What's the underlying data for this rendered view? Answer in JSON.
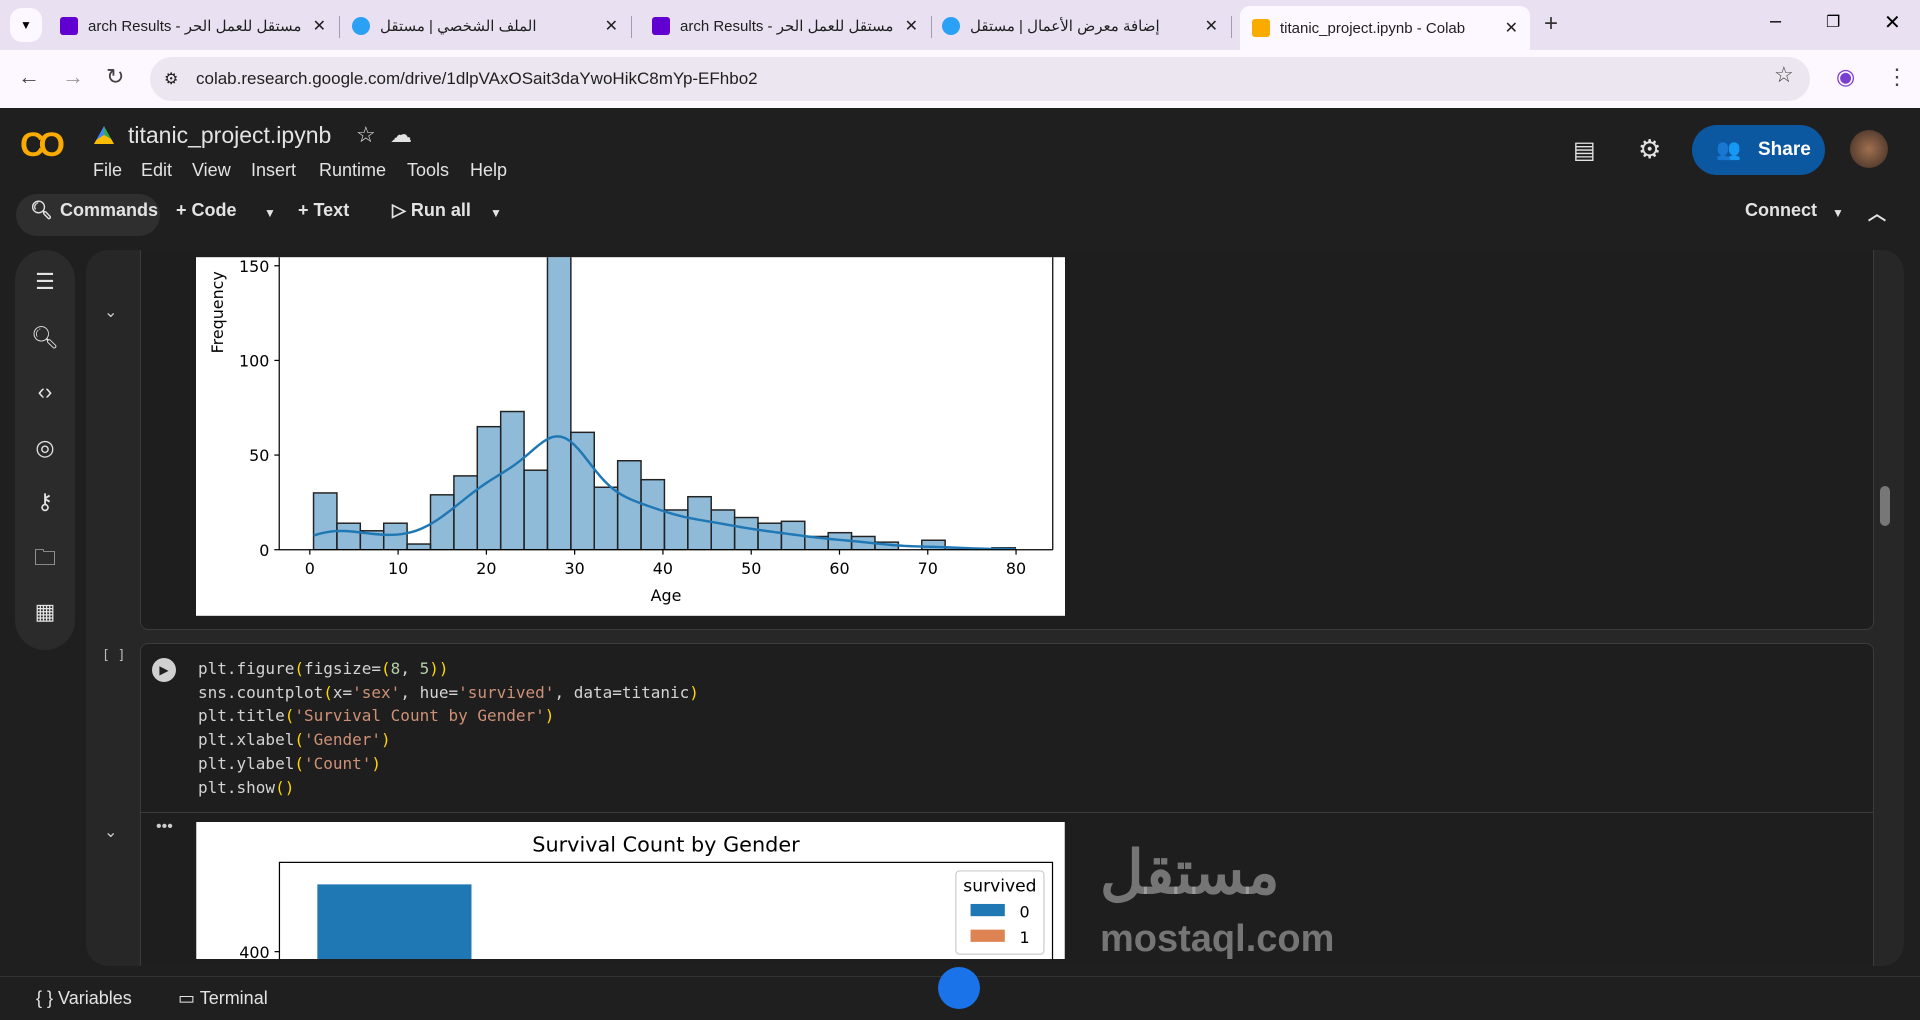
{
  "browser": {
    "tabs": [
      {
        "title": "مستقل للعمل الحر - arch Results",
        "icon": "yahoo-icon",
        "color": "#6001d2"
      },
      {
        "title": "الملف الشخصي | مستقل",
        "icon": "mostaql-icon",
        "color": "#2aa1f5"
      },
      {
        "title": "مستقل للعمل الحر - arch Results",
        "icon": "yahoo-icon",
        "color": "#6001d2"
      },
      {
        "title": "إضافة معرض الأعمال | مستقل",
        "icon": "mostaql-icon",
        "color": "#2aa1f5"
      },
      {
        "title": "titanic_project.ipynb - Colab",
        "icon": "colab-icon",
        "color": "#f9ab00"
      }
    ],
    "url": "colab.research.google.com/drive/1dlpVAxOSait3daYwoHikC8mYp-EFhbo2"
  },
  "colab": {
    "filename": "titanic_project.ipynb",
    "menu": [
      "File",
      "Edit",
      "View",
      "Insert",
      "Runtime",
      "Tools",
      "Help"
    ],
    "share": "Share",
    "toolbar": {
      "commands": "Commands",
      "code": "Code",
      "text": "Text",
      "run_all": "Run all",
      "connect": "Connect"
    },
    "bottom": {
      "variables": "Variables",
      "terminal": "Terminal"
    },
    "cell_exec": "[ ]",
    "code_lines": [
      [
        [
          "plt.figure",
          ""
        ],
        [
          "(",
          "p"
        ],
        [
          "figsize=",
          ""
        ],
        [
          "(",
          "p"
        ],
        [
          "8",
          "n"
        ],
        [
          ", ",
          ""
        ],
        [
          "5",
          "n"
        ],
        [
          ")",
          "p"
        ],
        [
          ")",
          "p"
        ]
      ],
      [
        [
          "sns.countplot",
          ""
        ],
        [
          "(",
          "p"
        ],
        [
          "x=",
          ""
        ],
        [
          "'sex'",
          "s"
        ],
        [
          ", hue=",
          ""
        ],
        [
          "'survived'",
          "s"
        ],
        [
          ", data=titanic",
          ""
        ],
        [
          ")",
          "p"
        ]
      ],
      [
        [
          "plt.title",
          ""
        ],
        [
          "(",
          "p"
        ],
        [
          "'Survival Count by Gender'",
          "s"
        ],
        [
          ")",
          "p"
        ]
      ],
      [
        [
          "plt.xlabel",
          ""
        ],
        [
          "(",
          "p"
        ],
        [
          "'Gender'",
          "s"
        ],
        [
          ")",
          "p"
        ]
      ],
      [
        [
          "plt.ylabel",
          ""
        ],
        [
          "(",
          "p"
        ],
        [
          "'Count'",
          "s"
        ],
        [
          ")",
          "p"
        ]
      ],
      [
        [
          "plt.show",
          ""
        ],
        [
          "(",
          "p"
        ],
        [
          ")",
          "p"
        ]
      ]
    ],
    "watermark": "mostaql.com"
  },
  "chart_data": [
    {
      "type": "bar",
      "title": "",
      "xlabel": "Age",
      "ylabel": "Frequency",
      "xlim": [
        -4,
        84
      ],
      "ylim": [
        0,
        150
      ],
      "xticks": [
        0,
        10,
        20,
        30,
        40,
        50,
        60,
        70,
        80
      ],
      "yticks": [
        0,
        50,
        100,
        150
      ],
      "bin_start": 0.42,
      "bin_width": 2.65,
      "values": [
        30,
        14,
        10,
        14,
        3,
        29,
        39,
        65,
        73,
        42,
        177,
        62,
        33,
        47,
        37,
        21,
        28,
        21,
        17,
        14,
        15,
        7,
        9,
        7,
        4,
        0,
        5,
        1,
        0,
        1
      ],
      "kde": true,
      "color": "#1f77b4"
    },
    {
      "type": "bar",
      "title": "Survival Count by Gender",
      "yticks": [
        400
      ],
      "legend_title": "survived",
      "legend": [
        "0",
        "1"
      ],
      "legend_placement": "top-right",
      "colors": [
        "#1f77b4",
        "#dd8452"
      ]
    }
  ]
}
